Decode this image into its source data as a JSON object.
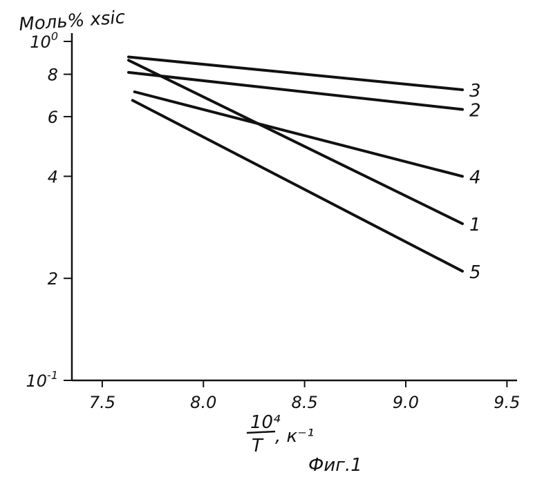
{
  "chart_data": {
    "type": "line",
    "title": "",
    "ylabel": "Моль% xsic",
    "xlabel": {
      "numerator": "10⁴",
      "denominator": "T",
      "unit": ", к⁻¹"
    },
    "caption": "Фиг.1",
    "x_scale": "linear",
    "y_scale": "log",
    "xlim": [
      7.35,
      9.55
    ],
    "ylim": [
      1,
      10
    ],
    "x_ticks": [
      7.5,
      8.0,
      8.5,
      9.0,
      9.5
    ],
    "x_tick_labels": [
      "7.5",
      "8.0",
      "8.5",
      "9.0",
      "9.5"
    ],
    "y_ticks": [
      1,
      2,
      4,
      6,
      8,
      10
    ],
    "y_tick_labels": [
      {
        "base": "10",
        "exp": "-1"
      },
      {
        "base": "2",
        "exp": ""
      },
      {
        "base": "4",
        "exp": ""
      },
      {
        "base": "6",
        "exp": ""
      },
      {
        "base": "8",
        "exp": ""
      },
      {
        "base": "10",
        "exp": "0"
      }
    ],
    "grid": false,
    "legend": "none",
    "series": [
      {
        "name": "1",
        "x": [
          7.63,
          9.28
        ],
        "y": [
          8.8,
          2.9
        ]
      },
      {
        "name": "2",
        "x": [
          7.63,
          9.28
        ],
        "y": [
          8.1,
          6.3
        ]
      },
      {
        "name": "3",
        "x": [
          7.63,
          9.28
        ],
        "y": [
          9.0,
          7.2
        ]
      },
      {
        "name": "4",
        "x": [
          7.66,
          9.28
        ],
        "y": [
          7.1,
          4.0
        ]
      },
      {
        "name": "5",
        "x": [
          7.65,
          9.28
        ],
        "y": [
          6.7,
          2.1
        ]
      }
    ]
  }
}
